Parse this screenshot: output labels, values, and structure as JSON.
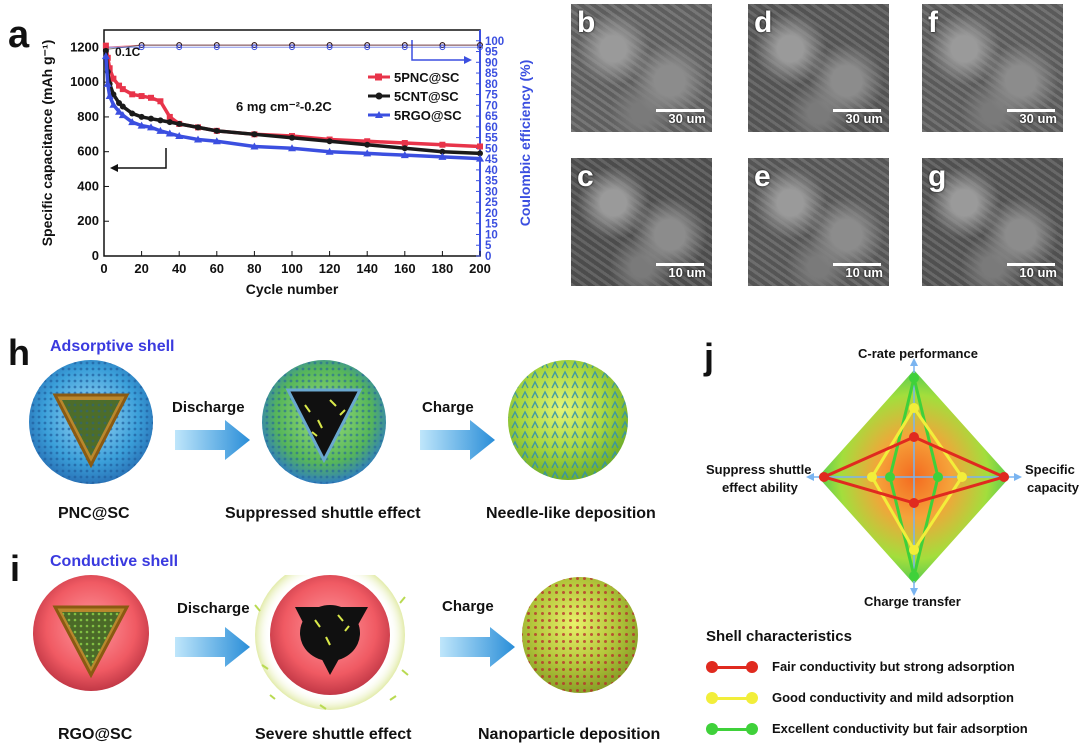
{
  "panel_labels": {
    "a": "a",
    "h": "h",
    "i": "i",
    "j": "j"
  },
  "chart_data": {
    "type": "line",
    "xlabel": "Cycle number",
    "ylabel": "Specific capacitance (mAh g⁻¹)",
    "ylabel2": "Coulombic efficiency (%)",
    "xlim": [
      0,
      200
    ],
    "ylim": [
      0,
      1300
    ],
    "y2lim": [
      0,
      105
    ],
    "xticks": [
      0,
      20,
      40,
      60,
      80,
      100,
      120,
      140,
      160,
      180,
      200
    ],
    "yticks": [
      0,
      200,
      400,
      600,
      800,
      1000,
      1200
    ],
    "y2ticks": [
      0,
      5,
      10,
      15,
      20,
      25,
      30,
      35,
      40,
      45,
      50,
      55,
      60,
      65,
      70,
      75,
      80,
      85,
      90,
      95,
      100
    ],
    "annotations": {
      "rate_initial": "0.1C",
      "condition": "6 mg cm⁻²-0.2C"
    },
    "series": [
      {
        "name": "5PNC@SC",
        "color": "#e8344a",
        "marker": "square",
        "x": [
          1,
          2,
          3,
          5,
          8,
          10,
          15,
          20,
          25,
          30,
          35,
          40,
          50,
          60,
          80,
          100,
          120,
          140,
          160,
          180,
          200
        ],
        "y": [
          1210,
          1140,
          1080,
          1020,
          980,
          960,
          930,
          920,
          910,
          890,
          800,
          760,
          740,
          720,
          700,
          690,
          670,
          660,
          650,
          640,
          630
        ]
      },
      {
        "name": "5CNT@SC",
        "color": "#1a1a1a",
        "marker": "circle",
        "x": [
          1,
          2,
          3,
          5,
          8,
          10,
          15,
          20,
          25,
          30,
          35,
          40,
          50,
          60,
          80,
          100,
          120,
          140,
          160,
          180,
          200
        ],
        "y": [
          1180,
          1060,
          990,
          930,
          880,
          860,
          820,
          800,
          790,
          780,
          770,
          760,
          740,
          720,
          700,
          680,
          660,
          640,
          620,
          600,
          590
        ]
      },
      {
        "name": "5RGO@SC",
        "color": "#3b4fe0",
        "marker": "triangle",
        "x": [
          1,
          2,
          3,
          5,
          8,
          10,
          15,
          20,
          25,
          30,
          35,
          40,
          50,
          60,
          80,
          100,
          120,
          140,
          160,
          180,
          200
        ],
        "y": [
          1150,
          990,
          920,
          870,
          830,
          810,
          770,
          750,
          740,
          720,
          705,
          690,
          670,
          660,
          630,
          620,
          600,
          590,
          580,
          570,
          560
        ]
      }
    ],
    "coulombic_series": [
      {
        "name": "5PNC@SC",
        "color": "#e8344a",
        "x": [
          1,
          20,
          40,
          60,
          80,
          100,
          120,
          140,
          160,
          180,
          200
        ],
        "y": [
          97,
          98,
          98,
          98,
          98,
          98,
          98,
          98,
          98,
          98,
          98
        ]
      },
      {
        "name": "5CNT@SC",
        "color": "#1a1a1a",
        "x": [
          1,
          20,
          40,
          60,
          80,
          100,
          120,
          140,
          160,
          180,
          200
        ],
        "y": [
          96,
          98,
          98,
          98,
          98,
          98,
          98,
          98,
          98,
          98,
          98
        ]
      },
      {
        "name": "5RGO@SC",
        "color": "#3b4fe0",
        "x": [
          1,
          20,
          40,
          60,
          80,
          100,
          120,
          140,
          160,
          180,
          200
        ],
        "y": [
          97,
          97,
          97,
          97,
          97,
          97,
          97,
          97,
          97,
          97,
          97
        ]
      }
    ]
  },
  "sem_images": [
    {
      "label": "b",
      "scale": "30 um"
    },
    {
      "label": "d",
      "scale": "30 um"
    },
    {
      "label": "f",
      "scale": "30 um"
    },
    {
      "label": "c",
      "scale": "10 um"
    },
    {
      "label": "e",
      "scale": "10 um"
    },
    {
      "label": "g",
      "scale": "10 um"
    }
  ],
  "schematic_h": {
    "title": "Adsorptive shell",
    "step1": "Discharge",
    "step2": "Charge",
    "captions": [
      "PNC@SC",
      "Suppressed shuttle effect",
      "Needle-like deposition"
    ]
  },
  "schematic_i": {
    "title": "Conductive shell",
    "step1": "Discharge",
    "step2": "Charge",
    "captions": [
      "RGO@SC",
      "Severe shuttle effect",
      "Nanoparticle deposition"
    ]
  },
  "radar": {
    "axes": {
      "top": "C-rate performance",
      "left_line1": "Suppress shuttle",
      "left_line2": "effect ability",
      "right_line1": "Specific",
      "right_line2": "capacity",
      "bottom": "Charge transfer"
    },
    "legend_title": "Shell characteristics",
    "legend": [
      {
        "label": "Fair conductivity but strong adsorption",
        "color": "#e02a1f"
      },
      {
        "label": "Good conductivity and mild adsorption",
        "color": "#f2ee3a"
      },
      {
        "label": "Excellent conductivity but fair adsorption",
        "color": "#3fd13a"
      }
    ]
  }
}
